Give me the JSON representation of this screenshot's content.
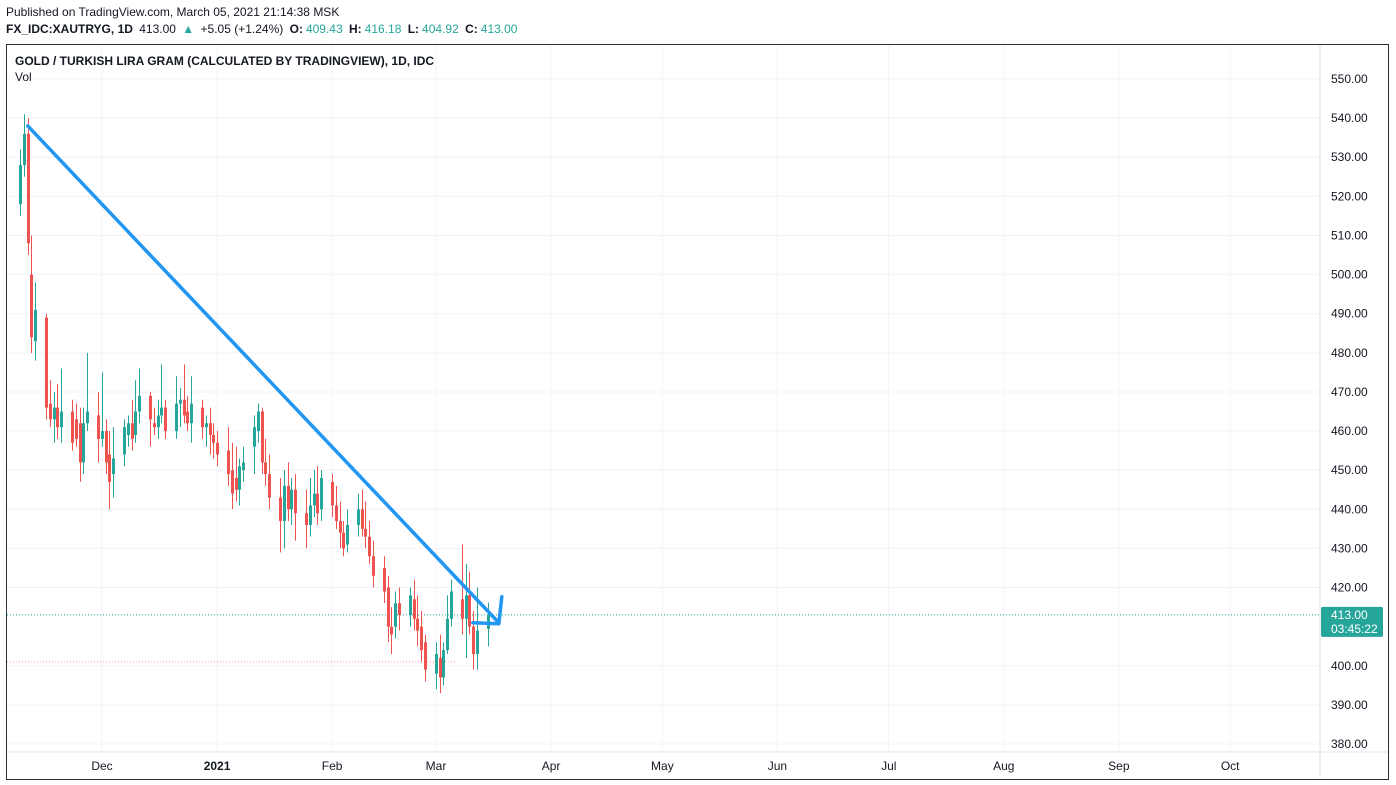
{
  "header": {
    "published": "Published on TradingView.com, March 05, 2021 21:14:38 MSK",
    "symbol": "FX_IDC:XAUTRYG, 1D",
    "last": "413.00",
    "change_arrow": "▲",
    "change": "+5.05 (+1.24%)",
    "o_label": "O:",
    "o_value": "409.43",
    "h_label": "H:",
    "h_value": "416.18",
    "l_label": "L:",
    "l_value": "404.92",
    "c_label": "C:",
    "c_value": "413.00"
  },
  "legend": {
    "title": "GOLD / TURKISH LIRA GRAM (CALCULATED BY TRADINGVIEW), 1D, IDC",
    "vol": "Vol"
  },
  "price_tag": {
    "price": "413.00",
    "countdown": "03:45:22",
    "color": "#26a69a"
  },
  "colors": {
    "up": "#26a69a",
    "down": "#ef5350",
    "trendline": "#2196f3",
    "grid": "#f0f3fa"
  },
  "chart_data": {
    "type": "candlestick",
    "y_axis": {
      "ticks": [
        550,
        540,
        530,
        520,
        510,
        500,
        490,
        480,
        470,
        460,
        450,
        440,
        430,
        420,
        400,
        390,
        380
      ],
      "tick_labels": [
        "550.00",
        "540.00",
        "530.00",
        "520.00",
        "510.00",
        "500.00",
        "490.00",
        "480.00",
        "470.00",
        "460.00",
        "450.00",
        "440.00",
        "430.00",
        "420.00",
        "400.00",
        "390.00",
        "380.00"
      ],
      "range": [
        378,
        556
      ]
    },
    "x_axis": {
      "labels": [
        {
          "label": "Dec",
          "date": "2020-12-01",
          "bold": false
        },
        {
          "label": "2021",
          "date": "2021-01-01",
          "bold": true
        },
        {
          "label": "Feb",
          "date": "2021-02-01",
          "bold": false
        },
        {
          "label": "Mar",
          "date": "2021-03-01",
          "bold": false
        },
        {
          "label": "Apr",
          "date": "2021-04-01",
          "bold": false
        },
        {
          "label": "May",
          "date": "2021-05-01",
          "bold": false
        },
        {
          "label": "Jun",
          "date": "2021-06-01",
          "bold": false
        },
        {
          "label": "Jul",
          "date": "2021-07-01",
          "bold": false
        },
        {
          "label": "Aug",
          "date": "2021-08-01",
          "bold": false
        },
        {
          "label": "Sep",
          "date": "2021-09-01",
          "bold": false
        },
        {
          "label": "Oct",
          "date": "2021-10-01",
          "bold": false
        }
      ]
    },
    "last_price_line": 413.0,
    "reference_line": 401.0,
    "trendline": {
      "from": {
        "date": "2020-11-11",
        "price": 538
      },
      "to": {
        "date": "2021-03-12",
        "price": 411
      }
    },
    "arrow": {
      "tip": {
        "date": "2021-03-12",
        "price": 411
      }
    },
    "candles": [
      {
        "d": "2020-11-09",
        "o": 518,
        "h": 532,
        "l": 515,
        "c": 528
      },
      {
        "d": "2020-11-10",
        "o": 528,
        "h": 541,
        "l": 525,
        "c": 536
      },
      {
        "d": "2020-11-11",
        "o": 536,
        "h": 540,
        "l": 505,
        "c": 508
      },
      {
        "d": "2020-11-12",
        "o": 500,
        "h": 510,
        "l": 480,
        "c": 484
      },
      {
        "d": "2020-11-13",
        "o": 483,
        "h": 498,
        "l": 478,
        "c": 491
      },
      {
        "d": "2020-11-16",
        "o": 489,
        "h": 490,
        "l": 463,
        "c": 466
      },
      {
        "d": "2020-11-17",
        "o": 467,
        "h": 473,
        "l": 461,
        "c": 463
      },
      {
        "d": "2020-11-18",
        "o": 463,
        "h": 470,
        "l": 457,
        "c": 466
      },
      {
        "d": "2020-11-19",
        "o": 466,
        "h": 472,
        "l": 458,
        "c": 461
      },
      {
        "d": "2020-11-20",
        "o": 461,
        "h": 476,
        "l": 457,
        "c": 465
      },
      {
        "d": "2020-11-23",
        "o": 465,
        "h": 468,
        "l": 455,
        "c": 457
      },
      {
        "d": "2020-11-24",
        "o": 463,
        "h": 467,
        "l": 456,
        "c": 458
      },
      {
        "d": "2020-11-25",
        "o": 462,
        "h": 466,
        "l": 447,
        "c": 452
      },
      {
        "d": "2020-11-26",
        "o": 452,
        "h": 466,
        "l": 449,
        "c": 462
      },
      {
        "d": "2020-11-27",
        "o": 462,
        "h": 480,
        "l": 460,
        "c": 465
      },
      {
        "d": "2020-11-30",
        "o": 464,
        "h": 470,
        "l": 452,
        "c": 458
      },
      {
        "d": "2020-12-01",
        "o": 458,
        "h": 475,
        "l": 456,
        "c": 460
      },
      {
        "d": "2020-12-02",
        "o": 460,
        "h": 463,
        "l": 449,
        "c": 452
      },
      {
        "d": "2020-12-03",
        "o": 454,
        "h": 460,
        "l": 440,
        "c": 447
      },
      {
        "d": "2020-12-04",
        "o": 449,
        "h": 461,
        "l": 443,
        "c": 453
      },
      {
        "d": "2020-12-07",
        "o": 454,
        "h": 463,
        "l": 451,
        "c": 461
      },
      {
        "d": "2020-12-08",
        "o": 459,
        "h": 464,
        "l": 456,
        "c": 462
      },
      {
        "d": "2020-12-09",
        "o": 462,
        "h": 468,
        "l": 455,
        "c": 458
      },
      {
        "d": "2020-12-10",
        "o": 459,
        "h": 473,
        "l": 457,
        "c": 465
      },
      {
        "d": "2020-12-11",
        "o": 465,
        "h": 476,
        "l": 462,
        "c": 469
      },
      {
        "d": "2020-12-14",
        "o": 469,
        "h": 470,
        "l": 456,
        "c": 463
      },
      {
        "d": "2020-12-15",
        "o": 462,
        "h": 466,
        "l": 459,
        "c": 461
      },
      {
        "d": "2020-12-16",
        "o": 461,
        "h": 468,
        "l": 458,
        "c": 464
      },
      {
        "d": "2020-12-17",
        "o": 464,
        "h": 477,
        "l": 462,
        "c": 466
      },
      {
        "d": "2020-12-18",
        "o": 466,
        "h": 468,
        "l": 458,
        "c": 460
      },
      {
        "d": "2020-12-21",
        "o": 460,
        "h": 474,
        "l": 458,
        "c": 467
      },
      {
        "d": "2020-12-22",
        "o": 467,
        "h": 471,
        "l": 461,
        "c": 468
      },
      {
        "d": "2020-12-23",
        "o": 468,
        "h": 477,
        "l": 462,
        "c": 464
      },
      {
        "d": "2020-12-24",
        "o": 465,
        "h": 469,
        "l": 460,
        "c": 462
      },
      {
        "d": "2020-12-25",
        "o": 462,
        "h": 474,
        "l": 457,
        "c": 467
      },
      {
        "d": "2020-12-28",
        "o": 466,
        "h": 468,
        "l": 458,
        "c": 461
      },
      {
        "d": "2020-12-29",
        "o": 461,
        "h": 464,
        "l": 456,
        "c": 462
      },
      {
        "d": "2020-12-30",
        "o": 462,
        "h": 466,
        "l": 454,
        "c": 459
      },
      {
        "d": "2020-12-31",
        "o": 459,
        "h": 462,
        "l": 453,
        "c": 457
      },
      {
        "d": "2021-01-01",
        "o": 457,
        "h": 460,
        "l": 451,
        "c": 454
      },
      {
        "d": "2021-01-04",
        "o": 455,
        "h": 461,
        "l": 446,
        "c": 449
      },
      {
        "d": "2021-01-05",
        "o": 450,
        "h": 457,
        "l": 440,
        "c": 444
      },
      {
        "d": "2021-01-06",
        "o": 448,
        "h": 456,
        "l": 442,
        "c": 445
      },
      {
        "d": "2021-01-07",
        "o": 445,
        "h": 453,
        "l": 441,
        "c": 451
      },
      {
        "d": "2021-01-08",
        "o": 450,
        "h": 456,
        "l": 447,
        "c": 452
      },
      {
        "d": "2021-01-11",
        "o": 456,
        "h": 464,
        "l": 449,
        "c": 461
      },
      {
        "d": "2021-01-12",
        "o": 460,
        "h": 467,
        "l": 457,
        "c": 465
      },
      {
        "d": "2021-01-13",
        "o": 465,
        "h": 466,
        "l": 449,
        "c": 452
      },
      {
        "d": "2021-01-14",
        "o": 452,
        "h": 458,
        "l": 446,
        "c": 449
      },
      {
        "d": "2021-01-15",
        "o": 449,
        "h": 454,
        "l": 440,
        "c": 443
      },
      {
        "d": "2021-01-18",
        "o": 443,
        "h": 448,
        "l": 429,
        "c": 437
      },
      {
        "d": "2021-01-19",
        "o": 437,
        "h": 450,
        "l": 430,
        "c": 446
      },
      {
        "d": "2021-01-20",
        "o": 446,
        "h": 452,
        "l": 437,
        "c": 440
      },
      {
        "d": "2021-01-21",
        "o": 440,
        "h": 448,
        "l": 436,
        "c": 445
      },
      {
        "d": "2021-01-22",
        "o": 445,
        "h": 449,
        "l": 432,
        "c": 439
      },
      {
        "d": "2021-01-25",
        "o": 439,
        "h": 445,
        "l": 430,
        "c": 436
      },
      {
        "d": "2021-01-26",
        "o": 436,
        "h": 448,
        "l": 433,
        "c": 441
      },
      {
        "d": "2021-01-27",
        "o": 441,
        "h": 450,
        "l": 438,
        "c": 444
      },
      {
        "d": "2021-01-28",
        "o": 444,
        "h": 451,
        "l": 436,
        "c": 439
      },
      {
        "d": "2021-01-29",
        "o": 440,
        "h": 450,
        "l": 437,
        "c": 448
      },
      {
        "d": "2021-02-01",
        "o": 447,
        "h": 449,
        "l": 438,
        "c": 441
      },
      {
        "d": "2021-02-02",
        "o": 441,
        "h": 446,
        "l": 435,
        "c": 437
      },
      {
        "d": "2021-02-03",
        "o": 437,
        "h": 442,
        "l": 430,
        "c": 434
      },
      {
        "d": "2021-02-04",
        "o": 434,
        "h": 437,
        "l": 428,
        "c": 430
      },
      {
        "d": "2021-02-05",
        "o": 431,
        "h": 440,
        "l": 429,
        "c": 436
      },
      {
        "d": "2021-02-08",
        "o": 436,
        "h": 444,
        "l": 433,
        "c": 440
      },
      {
        "d": "2021-02-09",
        "o": 440,
        "h": 445,
        "l": 433,
        "c": 435
      },
      {
        "d": "2021-02-10",
        "o": 435,
        "h": 442,
        "l": 430,
        "c": 433
      },
      {
        "d": "2021-02-11",
        "o": 433,
        "h": 437,
        "l": 426,
        "c": 428
      },
      {
        "d": "2021-02-12",
        "o": 428,
        "h": 432,
        "l": 420,
        "c": 423
      },
      {
        "d": "2021-02-15",
        "o": 425,
        "h": 428,
        "l": 416,
        "c": 419
      },
      {
        "d": "2021-02-16",
        "o": 420,
        "h": 423,
        "l": 406,
        "c": 410
      },
      {
        "d": "2021-02-17",
        "o": 410,
        "h": 415,
        "l": 403,
        "c": 408
      },
      {
        "d": "2021-02-18",
        "o": 410,
        "h": 419,
        "l": 407,
        "c": 416
      },
      {
        "d": "2021-02-19",
        "o": 416,
        "h": 420,
        "l": 409,
        "c": 413
      },
      {
        "d": "2021-02-22",
        "o": 413,
        "h": 420,
        "l": 410,
        "c": 418
      },
      {
        "d": "2021-02-23",
        "o": 417,
        "h": 422,
        "l": 409,
        "c": 412
      },
      {
        "d": "2021-02-24",
        "o": 412,
        "h": 418,
        "l": 405,
        "c": 409
      },
      {
        "d": "2021-02-25",
        "o": 410,
        "h": 414,
        "l": 401,
        "c": 404
      },
      {
        "d": "2021-02-26",
        "o": 406,
        "h": 408,
        "l": 396,
        "c": 399
      },
      {
        "d": "2021-03-01",
        "o": 398,
        "h": 406,
        "l": 394,
        "c": 403
      },
      {
        "d": "2021-03-02",
        "o": 402,
        "h": 408,
        "l": 393,
        "c": 397
      },
      {
        "d": "2021-03-03",
        "o": 397,
        "h": 406,
        "l": 395,
        "c": 404
      },
      {
        "d": "2021-03-04",
        "o": 404,
        "h": 418,
        "l": 403,
        "c": 412
      },
      {
        "d": "2021-03-05",
        "o": 412,
        "h": 422,
        "l": 410,
        "c": 419
      },
      {
        "d": "2021-03-08",
        "o": 417,
        "h": 431,
        "l": 408,
        "c": 412
      },
      {
        "d": "2021-03-09",
        "o": 412,
        "h": 426,
        "l": 402,
        "c": 418
      },
      {
        "d": "2021-03-10",
        "o": 418,
        "h": 424,
        "l": 408,
        "c": 410
      },
      {
        "d": "2021-03-11",
        "o": 410,
        "h": 414,
        "l": 399,
        "c": 403
      },
      {
        "d": "2021-03-12",
        "o": 403,
        "h": 420,
        "l": 399,
        "c": 409
      },
      {
        "d": "2021-03-15",
        "o": 409.43,
        "h": 416.18,
        "l": 404.92,
        "c": 413.0
      }
    ]
  }
}
